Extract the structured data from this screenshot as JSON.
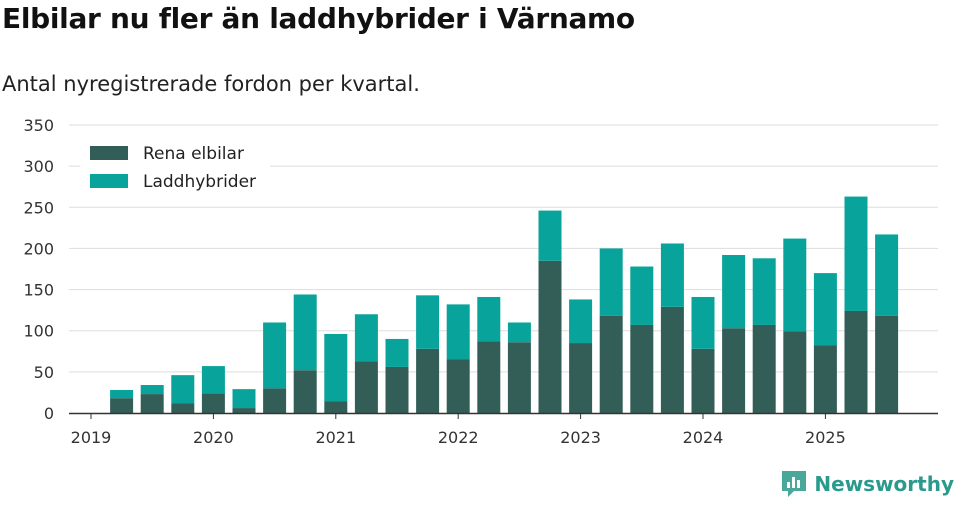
{
  "title": "Elbilar nu fler än laddhybrider i Värnamo",
  "subtitle": "Antal nyregistrerade fordon per kvartal.",
  "brand": {
    "name": "Newsworthy",
    "icon": "newsworthy-logo-icon",
    "color": "#4aa89b"
  },
  "colors": {
    "electric": "#335e58",
    "hybrid": "#08a39a",
    "grid": "#dddddd",
    "axis": "#333333"
  },
  "chart_data": {
    "type": "bar",
    "stacked": true,
    "ylim": [
      0,
      350
    ],
    "yticks": [
      0,
      50,
      100,
      150,
      200,
      250,
      300,
      350
    ],
    "xticks": [
      {
        "label": "2019",
        "position": 0
      },
      {
        "label": "2020",
        "position": 4
      },
      {
        "label": "2021",
        "position": 8
      },
      {
        "label": "2022",
        "position": 12
      },
      {
        "label": "2023",
        "position": 16
      },
      {
        "label": "2024",
        "position": 20
      },
      {
        "label": "2025",
        "position": 24
      }
    ],
    "categories": [
      "2019 Q2",
      "2019 Q3",
      "2019 Q4",
      "2020 Q1",
      "2020 Q2",
      "2020 Q3",
      "2020 Q4",
      "2021 Q1",
      "2021 Q2",
      "2021 Q3",
      "2021 Q4",
      "2022 Q1",
      "2022 Q2",
      "2022 Q3",
      "2022 Q4",
      "2023 Q1",
      "2023 Q2",
      "2023 Q3",
      "2023 Q4",
      "2024 Q1",
      "2024 Q2",
      "2024 Q3",
      "2024 Q4",
      "2025 Q1",
      "2025 Q2",
      "2025 Q3"
    ],
    "positions": [
      1,
      2,
      3,
      4,
      5,
      6,
      7,
      8,
      9,
      10,
      11,
      12,
      13,
      14,
      15,
      16,
      17,
      18,
      19,
      20,
      21,
      22,
      23,
      24,
      25,
      26
    ],
    "legend_position": "top-left",
    "series": [
      {
        "name": "Rena elbilar",
        "color": "#335e58",
        "values": [
          18,
          23,
          12,
          24,
          6,
          30,
          52,
          14,
          63,
          56,
          78,
          65,
          87,
          86,
          185,
          85,
          118,
          107,
          129,
          78,
          103,
          107,
          99,
          82,
          124,
          118
        ]
      },
      {
        "name": "Laddhybrider",
        "color": "#08a39a",
        "values": [
          10,
          11,
          34,
          33,
          23,
          80,
          92,
          82,
          57,
          34,
          65,
          67,
          54,
          24,
          61,
          53,
          82,
          71,
          77,
          63,
          89,
          81,
          113,
          88,
          139,
          99
        ]
      }
    ]
  }
}
